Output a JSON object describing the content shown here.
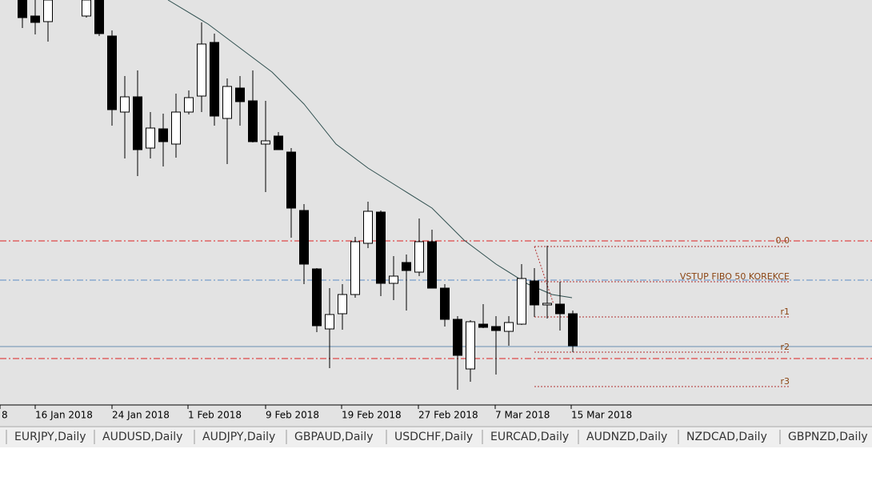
{
  "time_axis_labels": [
    "8",
    "16 Jan 2018",
    "24 Jan 2018",
    "1 Feb 2018",
    "9 Feb 2018",
    "19 Feb 2018",
    "27 Feb 2018",
    "7 Mar 2018",
    "15 Mar 2018"
  ],
  "annotations": {
    "fibo_level": "0.0",
    "entry_label": "VSTUP FIBO 50 KOREKCE",
    "r1": "r1",
    "r2": "r2",
    "r3": "r3"
  },
  "tabs": [
    "EURJPY,Daily",
    "AUDUSD,Daily",
    "AUDJPY,Daily",
    "GBPAUD,Daily",
    "USDCHF,Daily",
    "EURCAD,Daily",
    "AUDNZD,Daily",
    "NZDCAD,Daily",
    "GBPNZD,Daily"
  ]
}
